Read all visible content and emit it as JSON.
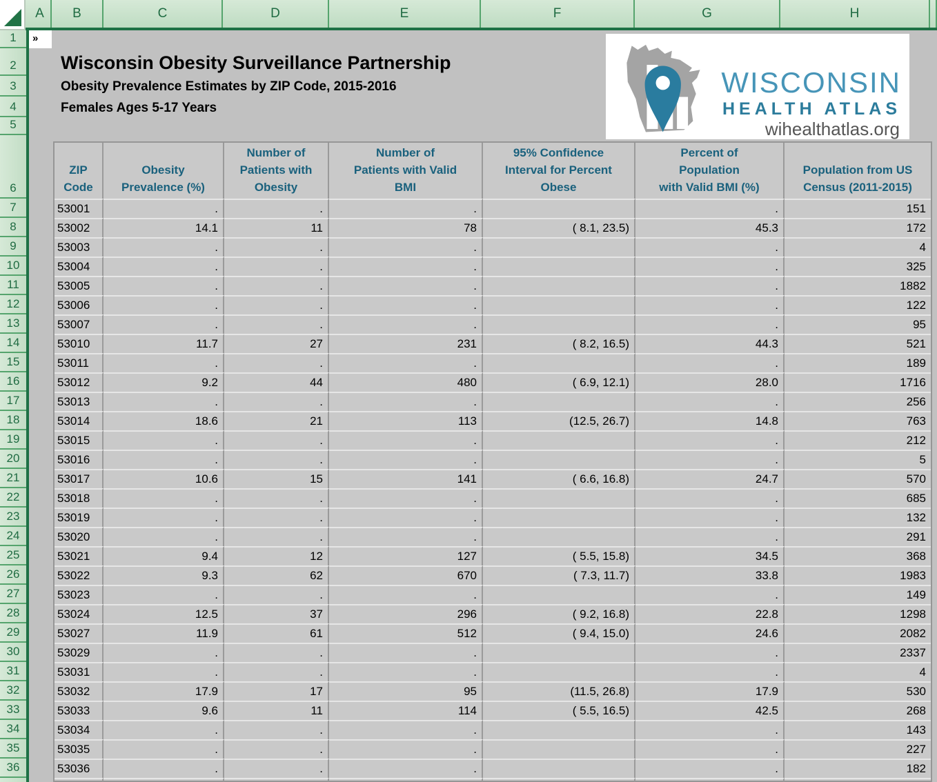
{
  "spreadsheet": {
    "column_letters": [
      "A",
      "B",
      "C",
      "D",
      "E",
      "F",
      "G",
      "H",
      ""
    ],
    "row_numbers": [
      "1",
      "2",
      "3",
      "4",
      "5",
      "6",
      "7",
      "8",
      "9",
      "10",
      "11",
      "12",
      "13",
      "14",
      "15",
      "16",
      "17",
      "18",
      "19",
      "20",
      "21",
      "22",
      "23",
      "24",
      "25",
      "26",
      "27",
      "28",
      "29",
      "30",
      "31",
      "32",
      "33",
      "34",
      "35",
      "36"
    ],
    "a1_text": "»"
  },
  "header": {
    "title": "Wisconsin Obesity Surveillance Partnership",
    "subtitle1": "Obesity Prevalence Estimates by ZIP Code, 2015-2016",
    "subtitle2": "Females Ages 5-17 Years"
  },
  "logo": {
    "line1": "WISCONSIN",
    "line2": "HEALTH ATLAS",
    "url": "wihealthatlas.org"
  },
  "table": {
    "headers": [
      "ZIP\nCode",
      "Obesity\nPrevalence (%)",
      "Number of\nPatients with\nObesity",
      "Number of\nPatients with Valid\nBMI",
      "95% Confidence\nInterval for Percent\nObese",
      "Percent of\nPopulation\nwith Valid BMI (%)",
      "Population from US\nCensus (2011-2015)"
    ],
    "rows": [
      [
        "53001",
        ".",
        ".",
        ".",
        "",
        ".",
        "151"
      ],
      [
        "53002",
        "14.1",
        "11",
        "78",
        "( 8.1, 23.5)",
        "45.3",
        "172"
      ],
      [
        "53003",
        ".",
        ".",
        ".",
        "",
        ".",
        "4"
      ],
      [
        "53004",
        ".",
        ".",
        ".",
        "",
        ".",
        "325"
      ],
      [
        "53005",
        ".",
        ".",
        ".",
        "",
        ".",
        "1882"
      ],
      [
        "53006",
        ".",
        ".",
        ".",
        "",
        ".",
        "122"
      ],
      [
        "53007",
        ".",
        ".",
        ".",
        "",
        ".",
        "95"
      ],
      [
        "53010",
        "11.7",
        "27",
        "231",
        "( 8.2, 16.5)",
        "44.3",
        "521"
      ],
      [
        "53011",
        ".",
        ".",
        ".",
        "",
        ".",
        "189"
      ],
      [
        "53012",
        "9.2",
        "44",
        "480",
        "( 6.9, 12.1)",
        "28.0",
        "1716"
      ],
      [
        "53013",
        ".",
        ".",
        ".",
        "",
        ".",
        "256"
      ],
      [
        "53014",
        "18.6",
        "21",
        "113",
        "(12.5, 26.7)",
        "14.8",
        "763"
      ],
      [
        "53015",
        ".",
        ".",
        ".",
        "",
        ".",
        "212"
      ],
      [
        "53016",
        ".",
        ".",
        ".",
        "",
        ".",
        "5"
      ],
      [
        "53017",
        "10.6",
        "15",
        "141",
        "( 6.6, 16.8)",
        "24.7",
        "570"
      ],
      [
        "53018",
        ".",
        ".",
        ".",
        "",
        ".",
        "685"
      ],
      [
        "53019",
        ".",
        ".",
        ".",
        "",
        ".",
        "132"
      ],
      [
        "53020",
        ".",
        ".",
        ".",
        "",
        ".",
        "291"
      ],
      [
        "53021",
        "9.4",
        "12",
        "127",
        "( 5.5, 15.8)",
        "34.5",
        "368"
      ],
      [
        "53022",
        "9.3",
        "62",
        "670",
        "( 7.3, 11.7)",
        "33.8",
        "1983"
      ],
      [
        "53023",
        ".",
        ".",
        ".",
        "",
        ".",
        "149"
      ],
      [
        "53024",
        "12.5",
        "37",
        "296",
        "( 9.2, 16.8)",
        "22.8",
        "1298"
      ],
      [
        "53027",
        "11.9",
        "61",
        "512",
        "( 9.4, 15.0)",
        "24.6",
        "2082"
      ],
      [
        "53029",
        ".",
        ".",
        ".",
        "",
        ".",
        "2337"
      ],
      [
        "53031",
        ".",
        ".",
        ".",
        "",
        ".",
        "4"
      ],
      [
        "53032",
        "17.9",
        "17",
        "95",
        "(11.5, 26.8)",
        "17.9",
        "530"
      ],
      [
        "53033",
        "9.6",
        "11",
        "114",
        "( 5.5, 16.5)",
        "42.5",
        "268"
      ],
      [
        "53034",
        ".",
        ".",
        ".",
        "",
        ".",
        "143"
      ],
      [
        "53035",
        ".",
        ".",
        ".",
        "",
        ".",
        "227"
      ],
      [
        "53036",
        ".",
        ".",
        ".",
        "",
        ".",
        "182"
      ]
    ]
  },
  "colors": {
    "excel_green": "#217346",
    "header_fill": "#cbe2cd",
    "header_line": "#55a46d",
    "label_green": "#1f6b42",
    "canvas_gray": "#c1c1c1",
    "cell_gray": "#c9c9c9",
    "grid_dark": "#9a9a9a",
    "grid_light": "#e6e6e6",
    "table_header_text": "#1a617d",
    "logo_blue": "#4795b8",
    "logo_teal": "#2c7c9c",
    "state_gray": "#a4a4a4",
    "url_gray": "#565656"
  }
}
